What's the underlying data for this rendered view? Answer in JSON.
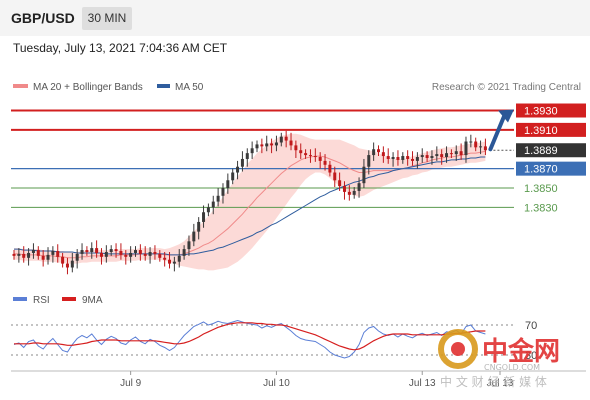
{
  "header": {
    "symbol": "GBP/USD",
    "timeframe": "30 MIN",
    "datetime": "Tuesday, July 13, 2021 7:04:36 AM CET"
  },
  "colors": {
    "ma20": "#f08a8a",
    "ma50": "#2f5d9e",
    "bands_fill": "#fbd3d0",
    "candle_up": "#3a3a3a",
    "candle_down": "#c0191b",
    "resistance": "#d21f1f",
    "pivot": "#3c6fb5",
    "support": "#5a9a4e",
    "current_box": "#333333",
    "arrow": "#2b5797",
    "rsi": "#5b7fd6",
    "rsi_ma": "#d61f1f",
    "watermark_red": "#e03030",
    "watermark_gold": "#d99a1c"
  },
  "chart_data": [
    {
      "type": "candlestick",
      "title": "",
      "legend": [
        {
          "name": "MA 20 + Bollinger Bands",
          "color": "#f08a8a"
        },
        {
          "name": "MA 50",
          "color": "#2f5d9e"
        }
      ],
      "legend_placement": "top-left",
      "credit": "Research © 2021 Trading Central",
      "ylim": [
        1.3752,
        1.3946
      ],
      "y_axis_side": "right",
      "x_ticks": [
        {
          "label": "Jul 9",
          "index": 24
        },
        {
          "label": "Jul 10",
          "index": 54
        },
        {
          "label": "Jul 13",
          "index": 84
        },
        {
          "label": "Jul 13",
          "index": 100
        }
      ],
      "levels": [
        {
          "label": "1.3930",
          "value": 1.393,
          "kind": "resistance"
        },
        {
          "label": "1.3910",
          "value": 1.391,
          "kind": "resistance"
        },
        {
          "label": "1.3889",
          "value": 1.3889,
          "kind": "current"
        },
        {
          "label": "1.3870",
          "value": 1.387,
          "kind": "pivot"
        },
        {
          "label": "1.3850",
          "value": 1.385,
          "kind": "support"
        },
        {
          "label": "1.3830",
          "value": 1.383,
          "kind": "support"
        }
      ],
      "projection": {
        "from_value": 1.389,
        "to_value": 1.3928,
        "direction": "up"
      },
      "series": [
        {
          "name": "close",
          "values": [
            1.378,
            1.3782,
            1.3778,
            1.3783,
            1.3786,
            1.378,
            1.3776,
            1.3781,
            1.3785,
            1.3779,
            1.3772,
            1.3768,
            1.3775,
            1.3782,
            1.3786,
            1.3784,
            1.3788,
            1.3783,
            1.3779,
            1.3784,
            1.3787,
            1.3785,
            1.3781,
            1.3779,
            1.3783,
            1.3786,
            1.3782,
            1.378,
            1.3784,
            1.3782,
            1.3778,
            1.3776,
            1.3772,
            1.3774,
            1.378,
            1.3787,
            1.3795,
            1.3805,
            1.3815,
            1.3825,
            1.383,
            1.3836,
            1.3842,
            1.385,
            1.3858,
            1.3866,
            1.3872,
            1.388,
            1.3886,
            1.3891,
            1.3895,
            1.3893,
            1.3896,
            1.3894,
            1.3897,
            1.3903,
            1.3899,
            1.3894,
            1.3889,
            1.3886,
            1.3884,
            1.3883,
            1.3882,
            1.3878,
            1.3874,
            1.3866,
            1.3858,
            1.3852,
            1.3846,
            1.3843,
            1.3847,
            1.3855,
            1.3872,
            1.3884,
            1.389,
            1.3887,
            1.3883,
            1.388,
            1.3882,
            1.3879,
            1.3883,
            1.388,
            1.3878,
            1.3882,
            1.3884,
            1.3881,
            1.3883,
            1.3885,
            1.3882,
            1.3886,
            1.3885,
            1.3888,
            1.3884,
            1.3898,
            1.3898,
            1.3892,
            1.3893,
            1.3889
          ]
        },
        {
          "name": "MA 20",
          "values": [
            1.3782,
            1.3782,
            1.3781,
            1.3781,
            1.3781,
            1.3781,
            1.378,
            1.378,
            1.378,
            1.3779,
            1.3779,
            1.3778,
            1.3778,
            1.3778,
            1.3779,
            1.3779,
            1.378,
            1.378,
            1.378,
            1.378,
            1.378,
            1.378,
            1.3781,
            1.3781,
            1.3781,
            1.3781,
            1.3782,
            1.3782,
            1.3782,
            1.3782,
            1.3782,
            1.3781,
            1.3781,
            1.3781,
            1.3781,
            1.3782,
            1.3784,
            1.3786,
            1.3788,
            1.3791,
            1.3793,
            1.3796,
            1.38,
            1.3804,
            1.3808,
            1.3813,
            1.3818,
            1.3823,
            1.3829,
            1.3834,
            1.384,
            1.3845,
            1.385,
            1.3855,
            1.386,
            1.3865,
            1.3869,
            1.3873,
            1.3876,
            1.3879,
            1.3881,
            1.3882,
            1.3883,
            1.3883,
            1.3882,
            1.388,
            1.3878,
            1.3876,
            1.3873,
            1.387,
            1.3868,
            1.3866,
            1.3866,
            1.3867,
            1.3868,
            1.3868,
            1.3868,
            1.3868,
            1.3868,
            1.3869,
            1.387,
            1.3871,
            1.3873,
            1.3874,
            1.3876,
            1.3877,
            1.3879,
            1.388,
            1.3881,
            1.3882,
            1.3882,
            1.3883,
            1.3884,
            1.3885,
            1.3886,
            1.3886,
            1.3887,
            1.3888
          ]
        },
        {
          "name": "MA 50",
          "values": [
            1.3787,
            1.3787,
            1.3786,
            1.3786,
            1.3786,
            1.3785,
            1.3785,
            1.3785,
            1.3785,
            1.3784,
            1.3784,
            1.3784,
            1.3784,
            1.3783,
            1.3783,
            1.3783,
            1.3783,
            1.3783,
            1.3783,
            1.3782,
            1.3782,
            1.3782,
            1.3782,
            1.3782,
            1.3782,
            1.3782,
            1.3782,
            1.3782,
            1.3782,
            1.3782,
            1.3782,
            1.3782,
            1.3781,
            1.3781,
            1.3781,
            1.3781,
            1.3782,
            1.3782,
            1.3783,
            1.3784,
            1.3785,
            1.3786,
            1.3788,
            1.3789,
            1.3791,
            1.3793,
            1.3795,
            1.3797,
            1.3799,
            1.3801,
            1.3804,
            1.3806,
            1.3809,
            1.3812,
            1.3814,
            1.3817,
            1.382,
            1.3823,
            1.3826,
            1.3829,
            1.3832,
            1.3835,
            1.3838,
            1.3841,
            1.3843,
            1.3846,
            1.3848,
            1.385,
            1.3852,
            1.3854,
            1.3856,
            1.3857,
            1.3859,
            1.3861,
            1.3862,
            1.3864,
            1.3865,
            1.3866,
            1.3868,
            1.3869,
            1.387,
            1.3871,
            1.3872,
            1.3873,
            1.3874,
            1.3875,
            1.3876,
            1.3877,
            1.3877,
            1.3878,
            1.3879,
            1.3879,
            1.388,
            1.388,
            1.3881,
            1.3881,
            1.3882,
            1.3882
          ]
        }
      ],
      "bands_width": [
        0.0006,
        0.0006,
        0.0006,
        0.0006,
        0.0006,
        0.0006,
        0.0006,
        0.0006,
        0.0006,
        0.0006,
        0.0006,
        0.0006,
        0.0006,
        0.0006,
        0.0006,
        0.0006,
        0.0006,
        0.0006,
        0.0006,
        0.0006,
        0.0006,
        0.0006,
        0.0006,
        0.0006,
        0.0006,
        0.0006,
        0.0006,
        0.0006,
        0.0006,
        0.0006,
        0.0006,
        0.0006,
        0.0007,
        0.0009,
        0.0011,
        0.0013,
        0.0016,
        0.0019,
        0.0022,
        0.0025,
        0.0028,
        0.0031,
        0.0034,
        0.0037,
        0.004,
        0.0042,
        0.0044,
        0.0045,
        0.0046,
        0.0046,
        0.0046,
        0.0045,
        0.0044,
        0.0043,
        0.0041,
        0.0039,
        0.0036,
        0.0033,
        0.003,
        0.0026,
        0.0022,
        0.0019,
        0.0017,
        0.0017,
        0.0018,
        0.002,
        0.0022,
        0.0024,
        0.0025,
        0.0026,
        0.0026,
        0.0025,
        0.0024,
        0.0022,
        0.002,
        0.0018,
        0.0016,
        0.0014,
        0.0012,
        0.0011,
        0.001,
        0.001,
        0.001,
        0.001,
        0.001,
        0.001,
        0.001,
        0.001,
        0.001,
        0.001,
        0.001,
        0.001,
        0.001,
        0.001,
        0.001,
        0.001,
        0.001,
        0.001
      ]
    },
    {
      "type": "line",
      "title": "",
      "legend": [
        {
          "name": "RSI",
          "color": "#5b7fd6"
        },
        {
          "name": "9MA",
          "color": "#d61f1f"
        }
      ],
      "legend_placement": "top-left",
      "ylim": [
        18,
        82
      ],
      "y_ticks": [
        70,
        30
      ],
      "series": [
        {
          "name": "RSI",
          "values": [
            44,
            46,
            40,
            48,
            50,
            42,
            38,
            46,
            52,
            44,
            36,
            34,
            44,
            52,
            56,
            53,
            58,
            50,
            44,
            51,
            55,
            52,
            46,
            44,
            50,
            54,
            48,
            45,
            51,
            48,
            43,
            40,
            36,
            40,
            48,
            56,
            62,
            68,
            71,
            74,
            70,
            72,
            75,
            73,
            72,
            74,
            76,
            74,
            72,
            71,
            70,
            66,
            69,
            67,
            70,
            72,
            67,
            62,
            56,
            52,
            50,
            49,
            48,
            44,
            40,
            34,
            30,
            28,
            26,
            28,
            34,
            44,
            60,
            66,
            68,
            62,
            58,
            56,
            58,
            54,
            58,
            55,
            53,
            57,
            59,
            56,
            58,
            60,
            56,
            61,
            60,
            63,
            58,
            68,
            70,
            62,
            60,
            58
          ]
        },
        {
          "name": "9MA",
          "values": [
            45,
            45,
            45,
            45,
            46,
            46,
            45,
            45,
            45,
            45,
            44,
            43,
            43,
            44,
            45,
            46,
            48,
            49,
            50,
            50,
            50,
            50,
            49,
            49,
            49,
            49,
            49,
            49,
            49,
            49,
            48,
            47,
            46,
            45,
            45,
            46,
            48,
            51,
            54,
            58,
            61,
            64,
            67,
            69,
            71,
            72,
            73,
            73,
            73,
            73,
            72,
            72,
            71,
            71,
            70,
            70,
            69,
            67,
            65,
            63,
            61,
            59,
            57,
            54,
            51,
            48,
            45,
            42,
            40,
            38,
            37,
            38,
            41,
            45,
            49,
            52,
            55,
            57,
            58,
            58,
            58,
            58,
            57,
            57,
            57,
            57,
            57,
            57,
            57,
            58,
            58,
            59,
            59,
            60,
            61,
            62,
            62,
            62
          ]
        }
      ]
    }
  ],
  "watermark": {
    "brand_cn": "中金网",
    "brand_url": "CNGOLD.COM",
    "tagline_cn": "中 文 财 经 新 媒 体"
  }
}
